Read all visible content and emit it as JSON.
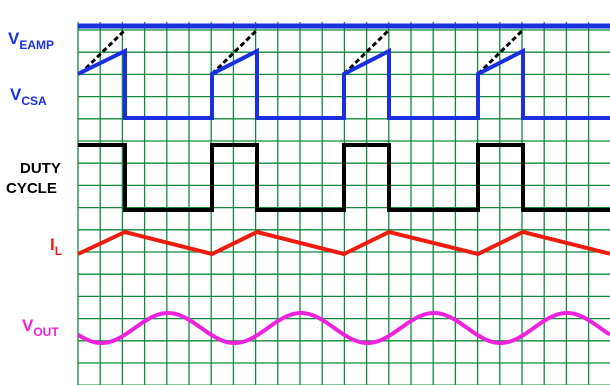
{
  "labels": {
    "veamp": {
      "main": "V",
      "sub": "EAMP"
    },
    "vcsa": {
      "main": "V",
      "sub": "CSA"
    },
    "duty_line1": "DUTY",
    "duty_line2": "CYCLE",
    "il": {
      "main": "I",
      "sub": "L"
    },
    "vout": {
      "main": "V",
      "sub": "OUT"
    }
  },
  "colors": {
    "grid": "#0f8a3c",
    "veamp": "#1a2fe0",
    "vcsa": "#1a2fe0",
    "slope_comp": "#000000",
    "duty": "#000000",
    "il": "#ee1c0e",
    "vout": "#ee22dd",
    "label_blue": "#1a2fe0",
    "label_black": "#000000",
    "label_red": "#ee1c0e",
    "label_magenta": "#ee22dd"
  }
}
